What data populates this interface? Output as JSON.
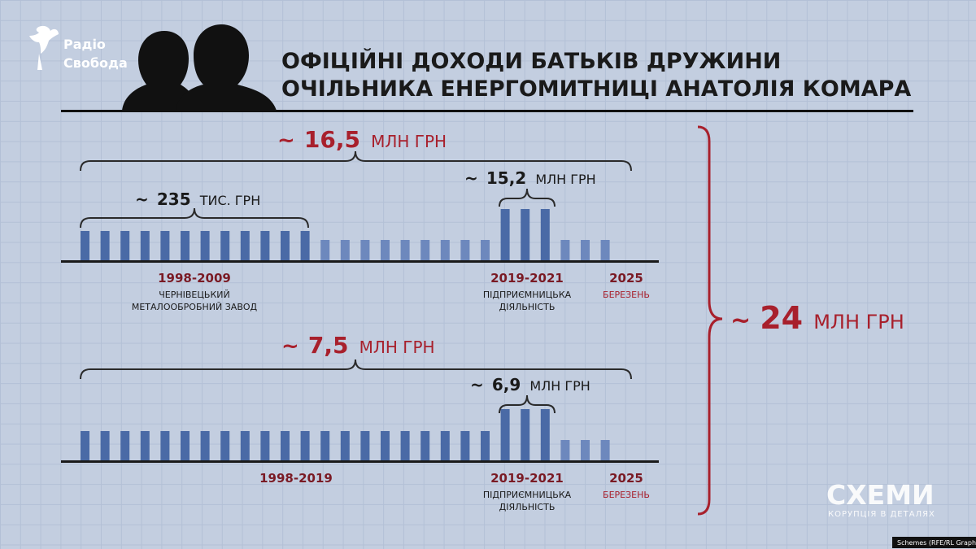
{
  "logo": {
    "line1": "Радіо",
    "line2": "Свобода"
  },
  "title": {
    "line1": "ОФІЦІЙНІ ДОХОДИ БАТЬКІВ ДРУЖИНИ",
    "line2": "ОЧІЛЬНИКА ЕНЕРГОМИТНИЦІ АНАТОЛІЯ КОМАРА"
  },
  "total": {
    "prefix": "~",
    "value": "24",
    "unit": "МЛН ГРН"
  },
  "watermark": {
    "brand": "СХЕМИ",
    "tagline": "КОРУПЦІЯ В ДЕТАЛЯХ"
  },
  "credit": "Schemes (RFE/RL Graphics)",
  "colors": {
    "bar": "#4a6aa6",
    "bar_light": "#6d88bd",
    "accent_red": "#a8202c",
    "axis": "#1a1a1a"
  },
  "chart_data": [
    {
      "type": "bar",
      "levels": [
        "low",
        "low",
        "low",
        "low",
        "low",
        "low",
        "low",
        "low",
        "low",
        "low",
        "low",
        "low",
        "mid",
        "mid",
        "mid",
        "mid",
        "mid",
        "mid",
        "mid",
        "mid",
        "mid",
        "high",
        "high",
        "high",
        "mid",
        "mid",
        "mid"
      ],
      "total": {
        "prefix": "~",
        "value": "16,5",
        "unit": "МЛН ГРН"
      },
      "annotations": [
        {
          "prefix": "~",
          "value": "235",
          "unit": "ТИС. ГРН"
        },
        {
          "prefix": "~",
          "value": "15,2",
          "unit": "МЛН ГРН"
        }
      ],
      "periods": [
        {
          "years": "1998-2009",
          "caption1": "ЧЕРНІВЕЦЬКИЙ",
          "caption2": "МЕТАЛООБРОБНИЙ ЗАВОД"
        },
        {
          "years": "2019-2021",
          "caption1": "ПІДПРИЄМНИЦЬКА",
          "caption2": "ДІЯЛЬНІСТЬ"
        },
        {
          "years": "2025",
          "caption1": "БЕРЕЗЕНЬ"
        }
      ]
    },
    {
      "type": "bar",
      "levels": [
        "low",
        "low",
        "low",
        "low",
        "low",
        "low",
        "low",
        "low",
        "low",
        "low",
        "low",
        "low",
        "low",
        "low",
        "low",
        "low",
        "low",
        "low",
        "low",
        "low",
        "low",
        "high",
        "high",
        "high",
        "mid",
        "mid",
        "mid"
      ],
      "total": {
        "prefix": "~",
        "value": "7,5",
        "unit": "МЛН ГРН"
      },
      "annotations": [
        {
          "prefix": "~",
          "value": "6,9",
          "unit": "МЛН ГРН"
        }
      ],
      "periods": [
        {
          "years": "1998-2019"
        },
        {
          "years": "2019-2021",
          "caption1": "ПІДПРИЄМНИЦЬКА",
          "caption2": "ДІЯЛЬНІСТЬ"
        },
        {
          "years": "2025",
          "caption1": "БЕРЕЗЕНЬ"
        }
      ]
    }
  ]
}
